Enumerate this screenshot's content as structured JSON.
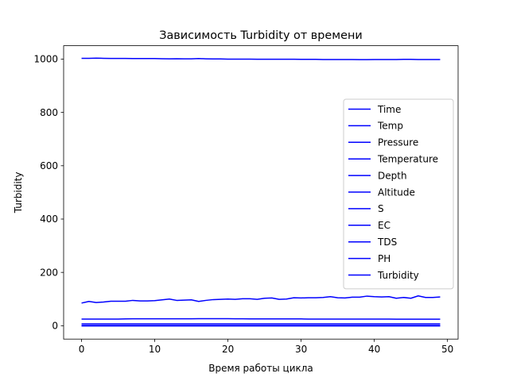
{
  "chart_data": {
    "type": "line",
    "title": "Зависимость Turbidity от времени",
    "xlabel": "Время работы цикла",
    "ylabel": "Turbidity",
    "xlim": [
      -2.45,
      51.45
    ],
    "ylim": [
      -50.15,
      1050.15
    ],
    "xticks": [
      0,
      10,
      20,
      30,
      40,
      50
    ],
    "yticks": [
      0,
      200,
      400,
      600,
      800,
      1000
    ],
    "grid": false,
    "legend_position": "right",
    "line_color": "#0000ff",
    "x": [
      0,
      1,
      2,
      3,
      4,
      5,
      6,
      7,
      8,
      9,
      10,
      11,
      12,
      13,
      14,
      15,
      16,
      17,
      18,
      19,
      20,
      21,
      22,
      23,
      24,
      25,
      26,
      27,
      28,
      29,
      30,
      31,
      32,
      33,
      34,
      35,
      36,
      37,
      38,
      39,
      40,
      41,
      42,
      43,
      44,
      45,
      46,
      47,
      48,
      49
    ],
    "series": [
      {
        "name": "Time",
        "values": [
          0,
          0,
          0,
          0,
          0,
          0,
          0,
          0,
          0,
          0,
          0,
          0,
          0,
          0,
          0,
          0,
          0,
          0,
          0,
          0,
          0,
          0,
          0,
          0,
          0,
          0,
          0,
          0,
          0,
          0,
          0,
          0,
          0,
          0,
          0,
          0,
          0,
          0,
          0,
          0,
          0,
          0,
          0,
          0,
          0,
          0,
          0,
          0,
          0,
          0
        ]
      },
      {
        "name": "Temp",
        "values": [
          25,
          25,
          25,
          25,
          25,
          25,
          25.5,
          26,
          26,
          26,
          26,
          26,
          26,
          26,
          26,
          26,
          26.5,
          26.5,
          26.5,
          26.5,
          26.5,
          26,
          26,
          25.5,
          25.5,
          25.5,
          25.5,
          25.5,
          25.5,
          25.5,
          25.5,
          25,
          25,
          25,
          25,
          25,
          25,
          25,
          25,
          25,
          25,
          25,
          25,
          24.5,
          24.5,
          24.5,
          24.5,
          24.5,
          24.5,
          24.5
        ]
      },
      {
        "name": "Pressure",
        "values": [
          1003,
          1003,
          1003.5,
          1003,
          1002.5,
          1002.5,
          1002.5,
          1002,
          1002,
          1002,
          1002,
          1001.5,
          1001,
          1001.5,
          1001,
          1001,
          1002,
          1001,
          1000.5,
          1000.5,
          1000,
          1000,
          1000,
          1000,
          999.5,
          999.5,
          999.5,
          999.5,
          999.5,
          999.5,
          999,
          999,
          999,
          998.5,
          998.5,
          998.5,
          998.5,
          998.5,
          998,
          998,
          998.5,
          998.5,
          998.5,
          998.5,
          999,
          999,
          998.5,
          998.5,
          998.5,
          998.5
        ]
      },
      {
        "name": "Temperature",
        "values": [
          0,
          0,
          0,
          0,
          0,
          0,
          0,
          0,
          0,
          0,
          0,
          0,
          0,
          0,
          0,
          0,
          0,
          0,
          0,
          0,
          0,
          0,
          0,
          0,
          0,
          0,
          0,
          0,
          0,
          0,
          0,
          0,
          0,
          0,
          0,
          0,
          0,
          0,
          0,
          0,
          0,
          0,
          0,
          0,
          0,
          0,
          0,
          0,
          0,
          0
        ]
      },
      {
        "name": "Depth",
        "values": [
          0,
          0,
          0,
          0,
          0,
          0,
          0,
          0,
          0,
          0,
          0,
          0,
          0,
          0,
          0,
          0,
          0,
          0,
          0,
          0,
          0,
          0,
          0,
          0,
          0,
          0,
          0,
          0,
          0,
          0,
          0,
          0,
          0,
          0,
          0,
          0,
          0,
          0,
          0,
          0,
          0,
          0,
          0,
          0,
          0,
          0,
          0,
          0,
          0,
          0
        ]
      },
      {
        "name": "Altitude",
        "values": [
          0,
          0,
          0,
          0,
          0,
          0,
          0,
          0,
          0,
          0,
          0,
          0,
          0,
          0,
          0,
          0,
          0,
          0,
          0,
          0,
          0,
          0,
          0,
          0,
          0,
          0,
          0,
          0,
          0,
          0,
          0,
          0,
          0,
          0,
          0,
          0,
          0,
          0,
          0,
          0,
          0,
          0,
          0,
          0,
          0,
          0,
          0,
          0,
          0,
          0
        ]
      },
      {
        "name": "S",
        "values": [
          0,
          0,
          0,
          0,
          0,
          0,
          0,
          0,
          0,
          0,
          0,
          0,
          0,
          0,
          0,
          0,
          0,
          0,
          0,
          0,
          0,
          0,
          0,
          0,
          0,
          0,
          0,
          0,
          0,
          0,
          0,
          0,
          0,
          0,
          0,
          0,
          0,
          0,
          0,
          0,
          0,
          0,
          0,
          0,
          0,
          0,
          0,
          0,
          0,
          0
        ]
      },
      {
        "name": "EC",
        "values": [
          1,
          1,
          1,
          1,
          1,
          1,
          1,
          1,
          1,
          1,
          1,
          1,
          1,
          1,
          1,
          1,
          1,
          1,
          1,
          1,
          1,
          1,
          1,
          1,
          1,
          1,
          1,
          1,
          1,
          1,
          1,
          1,
          1,
          1,
          1,
          1,
          1,
          1,
          1,
          1,
          1,
          1,
          1,
          1,
          1,
          1,
          1,
          1,
          1,
          1
        ]
      },
      {
        "name": "TDS",
        "values": [
          0.5,
          0.5,
          0.5,
          0.5,
          0.5,
          0.5,
          0.5,
          0.5,
          0.5,
          0.5,
          0.5,
          0.5,
          0.5,
          0.5,
          0.5,
          0.5,
          0.5,
          0.5,
          0.5,
          0.5,
          0.5,
          0.5,
          0.5,
          0.5,
          0.5,
          0.5,
          0.5,
          0.5,
          0.5,
          0.5,
          0.5,
          0.5,
          0.5,
          0.5,
          0.5,
          0.5,
          0.5,
          0.5,
          0.5,
          0.5,
          0.5,
          0.5,
          0.5,
          0.5,
          0.5,
          0.5,
          0.5,
          0.5,
          0.5,
          0.5
        ]
      },
      {
        "name": "PH",
        "values": [
          7,
          7,
          7,
          7,
          7,
          7,
          7,
          7,
          7,
          7,
          7,
          7,
          7,
          7,
          7,
          7,
          7,
          7,
          7,
          7,
          7,
          7,
          7,
          7,
          7,
          7,
          7,
          7,
          7,
          7,
          7,
          7,
          7,
          7,
          7,
          7,
          7,
          7,
          7,
          7,
          7,
          7,
          7,
          7,
          7,
          7,
          7,
          7,
          7,
          7
        ]
      },
      {
        "name": "Turbidity",
        "values": [
          85,
          91,
          87,
          89,
          92,
          92,
          92,
          95,
          93,
          93,
          94,
          97,
          100,
          95,
          96,
          97,
          91,
          95,
          98,
          99,
          100,
          99,
          101,
          101,
          99,
          103,
          104,
          99,
          100,
          105,
          104,
          105,
          105,
          106,
          109,
          105,
          104,
          107,
          107,
          111,
          109,
          108,
          109,
          103,
          106,
          103,
          112,
          106,
          106,
          108
        ]
      }
    ]
  }
}
